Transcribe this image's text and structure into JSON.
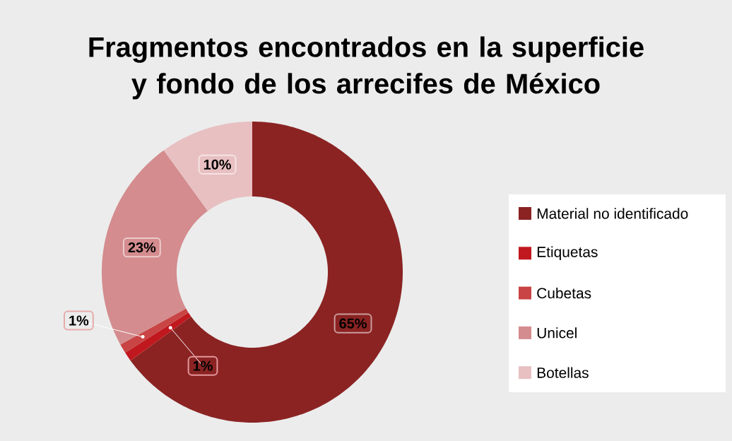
{
  "chart_data": {
    "type": "donut",
    "title": "Fragmentos encontrados en la superficie y fondo de los arrecifes de México",
    "categories": [
      "Material no identificado",
      "Etiquetas",
      "Cubetas",
      "Unicel",
      "Botellas"
    ],
    "values": [
      65,
      1,
      1,
      23,
      10
    ],
    "value_labels": [
      "65%",
      "1%",
      "1%",
      "23%",
      "10%"
    ],
    "colors": [
      "#8b2323",
      "#c0181e",
      "#c94444",
      "#d48c8e",
      "#e8c0c2"
    ],
    "legend": "right"
  }
}
